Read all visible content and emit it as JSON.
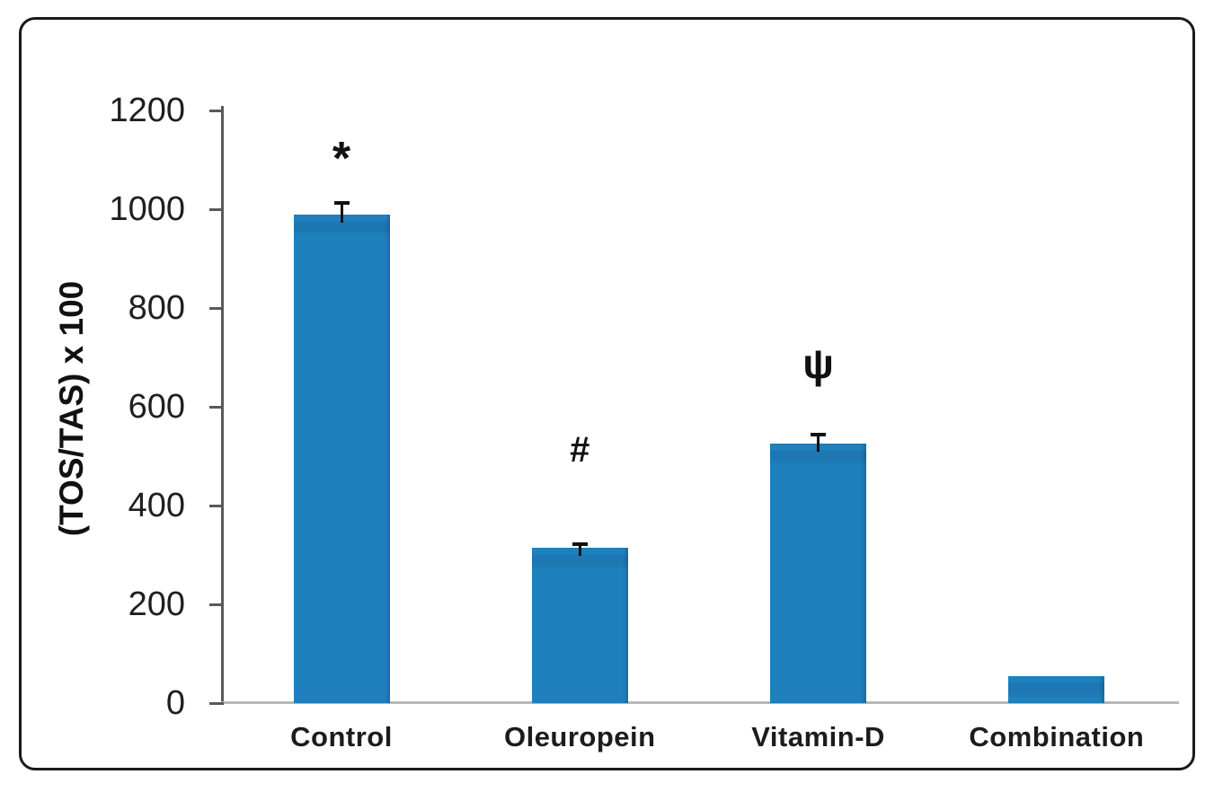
{
  "chart_data": {
    "type": "bar",
    "title": "",
    "xlabel": "",
    "ylabel": "(TOS/TAS) x 100",
    "categories": [
      "Control",
      "Oleuropein",
      "Vitamin-D",
      "Combination"
    ],
    "series": [
      {
        "name": "(TOS/TAS) x 100",
        "values": [
          990,
          315,
          525,
          55
        ],
        "errors_plus": [
          25,
          8,
          20,
          0
        ]
      }
    ],
    "annotations": [
      "*",
      "#",
      "ψ",
      ""
    ],
    "yticks": [
      0,
      200,
      400,
      600,
      800,
      1000,
      1200
    ],
    "ylim": [
      0,
      1200
    ],
    "grid": false,
    "legend": null,
    "colors": {
      "bar": "#1e81be",
      "bar_band": "#1d77b2",
      "error_bar": "#111111",
      "axis": "#595959",
      "baseline": "#b8b8b8",
      "frame": "#1a1a1a",
      "text": "#1f1f1f"
    }
  }
}
